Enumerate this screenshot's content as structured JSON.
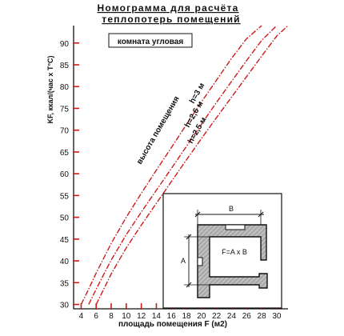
{
  "chart_data": {
    "type": "line",
    "title_line1": "Номограмма  для  расчёта",
    "title_line2": "теплопотерь  помещений",
    "xlabel": "площадь  помещения F (м2)",
    "ylabel": "KF, ккал/(час х T°C)",
    "room_label": "комната  угловая",
    "curves_caption": "высота  помещения",
    "x_ticks": [
      4,
      6,
      8,
      10,
      12,
      14,
      16,
      18,
      20,
      22,
      24,
      26,
      28,
      30
    ],
    "y_ticks": [
      30,
      35,
      40,
      45,
      50,
      55,
      60,
      65,
      70,
      75,
      80,
      85,
      90
    ],
    "xlim": [
      3,
      31.5
    ],
    "ylim": [
      29,
      94
    ],
    "grid": false,
    "series": [
      {
        "name": "h=3 м",
        "x": [
          4,
          5,
          6,
          8,
          10,
          12,
          14,
          16,
          18,
          20,
          22,
          24,
          26,
          28
        ],
        "y": [
          30,
          33.5,
          37.2,
          44,
          50,
          55.5,
          60.8,
          66,
          71.3,
          76.5,
          81.5,
          86.5,
          91,
          94
        ]
      },
      {
        "name": "h=2,6 м",
        "x": [
          5,
          6,
          8,
          10,
          12,
          14,
          16,
          18,
          20,
          22,
          24,
          26,
          28,
          30
        ],
        "y": [
          30,
          33.5,
          40.2,
          46,
          51.2,
          56.2,
          61.2,
          66.3,
          71.4,
          76.4,
          81.2,
          86,
          90.6,
          94
        ]
      },
      {
        "name": "h=2,5 м",
        "x": [
          6,
          8,
          10,
          12,
          14,
          16,
          18,
          20,
          22,
          24,
          26,
          28,
          30,
          31.5
        ],
        "y": [
          30,
          37,
          43,
          48.2,
          53.2,
          58.2,
          63.2,
          68.1,
          72.9,
          77.6,
          82.3,
          87,
          91.6,
          94
        ]
      }
    ],
    "series_color": "#cc1a1a",
    "inset": {
      "dim_b": "B",
      "dim_a": "A",
      "formula": "F=A x B"
    }
  }
}
